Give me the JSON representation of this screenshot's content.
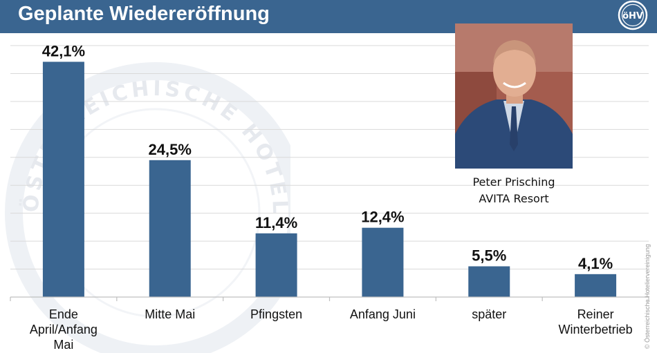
{
  "header": {
    "title": "Geplante Wiedereröffnung",
    "logo_text": "öHV",
    "color": "#3a6590"
  },
  "chart_data": {
    "type": "bar",
    "categories": [
      [
        "Ende",
        "April/Anfang",
        "Mai"
      ],
      [
        "Mitte Mai"
      ],
      [
        "Pfingsten"
      ],
      [
        "Anfang Juni"
      ],
      [
        "später"
      ],
      [
        "Reiner",
        "Winterbetrieb"
      ]
    ],
    "values": [
      42.1,
      24.5,
      11.4,
      12.4,
      5.5,
      4.1
    ],
    "data_labels": [
      "42,1%",
      "24,5%",
      "11,4%",
      "12,4%",
      "5,5%",
      "4,1%"
    ],
    "ylim": [
      0,
      45
    ],
    "grid": true,
    "bar_color": "#3a6590",
    "gridline_color": "#d9d9d9"
  },
  "photo": {
    "name": "Peter Prisching",
    "company": "AVITA Resort"
  },
  "watermark_text": "ÖSTERREICHISCHE HOTELIERVEREINIGUNG",
  "copyright": "© Österreichische Hoteliervereinigung"
}
